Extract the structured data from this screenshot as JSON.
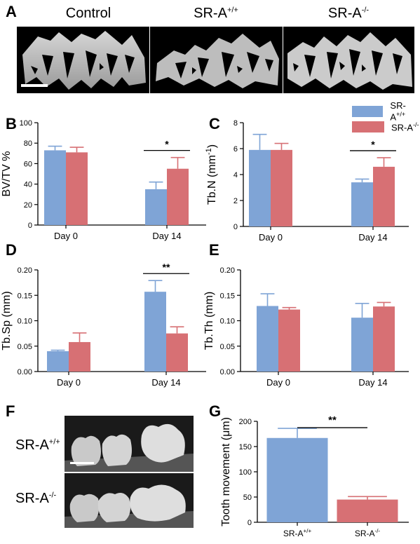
{
  "panels": {
    "A": "A",
    "B": "B",
    "C": "C",
    "D": "D",
    "E": "E",
    "F": "F",
    "G": "G"
  },
  "panel_a": {
    "titles": [
      {
        "base": "Control",
        "sup": ""
      },
      {
        "base": "SR-A",
        "sup": "+/+"
      },
      {
        "base": "SR-A",
        "sup": "-/-"
      }
    ]
  },
  "panel_f": {
    "labels": [
      {
        "base": "SR-A",
        "sup": "+/+"
      },
      {
        "base": "SR-A",
        "sup": "-/-"
      }
    ]
  },
  "legend": {
    "items": [
      {
        "base": "SR-A",
        "sup": "+/+",
        "color": "#7fa4d6"
      },
      {
        "base": "SR-A",
        "sup": "-/-",
        "color": "#d77074"
      }
    ]
  },
  "colors": {
    "wt": "#7fa4d6",
    "ko": "#d77074"
  },
  "chart_data": [
    {
      "id": "B",
      "type": "bar",
      "categories": [
        "Day 0",
        "Day 14"
      ],
      "ylabel": "BV/TV %",
      "ylim": [
        0,
        100
      ],
      "yticks": [
        0,
        20,
        40,
        60,
        80,
        100
      ],
      "ytick_labels": [
        "0",
        "20",
        "40",
        "60",
        "80",
        "100"
      ],
      "series": [
        {
          "name": "SR-A+/+",
          "values": [
            73,
            35
          ],
          "errors": [
            4,
            7
          ]
        },
        {
          "name": "SR-A-/-",
          "values": [
            71,
            55
          ],
          "errors": [
            5,
            11
          ]
        }
      ],
      "significance": [
        {
          "category": 1,
          "label": "*"
        }
      ]
    },
    {
      "id": "C",
      "type": "bar",
      "categories": [
        "Day 0",
        "Day 14"
      ],
      "ylabel": "Tb.N (mm-1)",
      "ylim": [
        0,
        8
      ],
      "yticks": [
        0,
        2,
        4,
        6,
        8
      ],
      "ytick_labels": [
        "0",
        "2",
        "4",
        "6",
        "8"
      ],
      "series": [
        {
          "name": "SR-A+/+",
          "values": [
            5.9,
            3.4
          ],
          "errors": [
            1.2,
            0.25
          ]
        },
        {
          "name": "SR-A-/-",
          "values": [
            5.9,
            4.6
          ],
          "errors": [
            0.5,
            0.7
          ]
        }
      ],
      "significance": [
        {
          "category": 1,
          "label": "*"
        }
      ]
    },
    {
      "id": "D",
      "type": "bar",
      "categories": [
        "Day 0",
        "Day 14"
      ],
      "ylabel": "Tb.Sp (mm)",
      "ylim": [
        0,
        0.2
      ],
      "yticks": [
        0,
        0.05,
        0.1,
        0.15,
        0.2
      ],
      "ytick_labels": [
        "0.00",
        "0.05",
        "0.10",
        "0.15",
        "0.20"
      ],
      "series": [
        {
          "name": "SR-A+/+",
          "values": [
            0.04,
            0.157
          ],
          "errors": [
            0.002,
            0.022
          ]
        },
        {
          "name": "SR-A-/-",
          "values": [
            0.058,
            0.075
          ],
          "errors": [
            0.018,
            0.013
          ]
        }
      ],
      "significance": [
        {
          "category": 1,
          "label": "**"
        }
      ]
    },
    {
      "id": "E",
      "type": "bar",
      "categories": [
        "Day 0",
        "Day 14"
      ],
      "ylabel": "Tb.Th (mm)",
      "ylim": [
        0,
        0.2
      ],
      "yticks": [
        0,
        0.05,
        0.1,
        0.15,
        0.2
      ],
      "ytick_labels": [
        "0.00",
        "0.05",
        "0.10",
        "0.15",
        "0.20"
      ],
      "series": [
        {
          "name": "SR-A+/+",
          "values": [
            0.129,
            0.106
          ],
          "errors": [
            0.024,
            0.028
          ]
        },
        {
          "name": "SR-A-/-",
          "values": [
            0.122,
            0.128
          ],
          "errors": [
            0.004,
            0.008
          ]
        }
      ],
      "significance": []
    },
    {
      "id": "G",
      "type": "bar",
      "categories": [
        "SR-A+/+",
        "SR-A-/-"
      ],
      "ylabel": "Tooth movement (μm)",
      "ylim": [
        0,
        200
      ],
      "yticks": [
        0,
        50,
        100,
        150,
        200
      ],
      "ytick_labels": [
        "0",
        "50",
        "100",
        "150",
        "200"
      ],
      "series": [
        {
          "name": "Tooth movement",
          "values": [
            167,
            45
          ],
          "errors": [
            19,
            6
          ]
        }
      ],
      "significance": [
        {
          "label": "**"
        }
      ]
    }
  ]
}
